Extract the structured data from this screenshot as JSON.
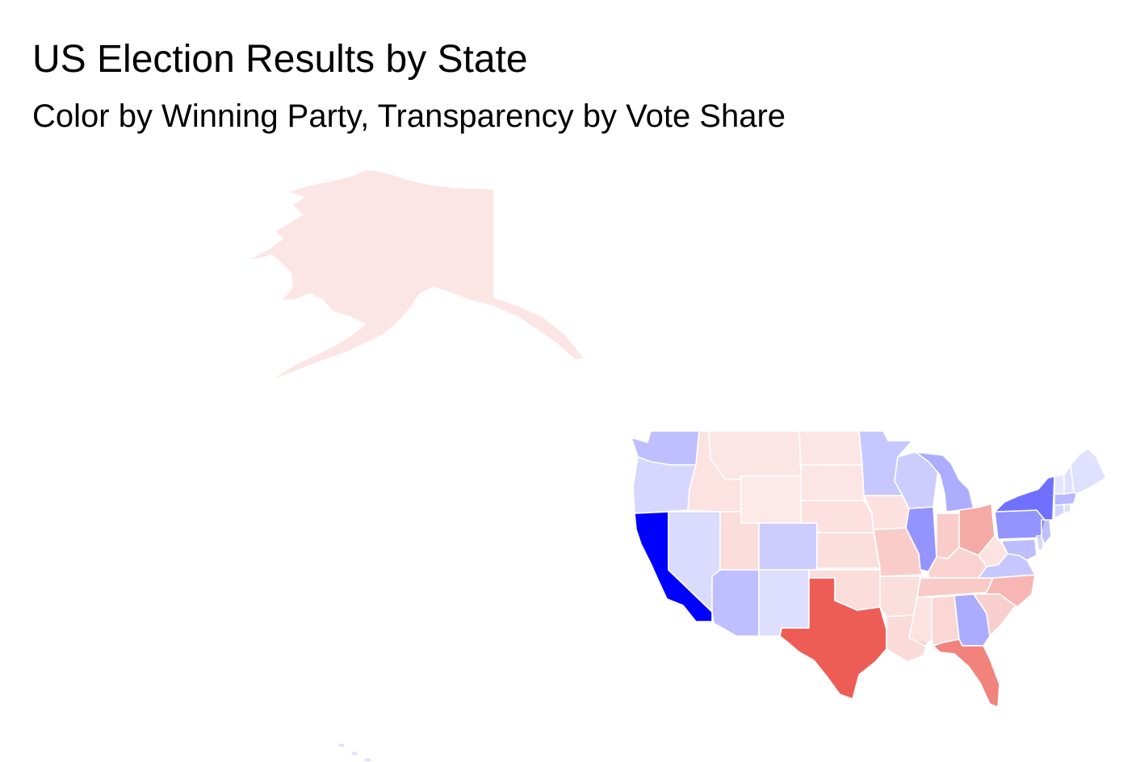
{
  "title": "US Election Results by State",
  "subtitle": "Color by Winning Party, Transparency by Vote Share",
  "party_colors": {
    "D": "#0000ff",
    "R": "#e8352c"
  },
  "states": [
    {
      "id": "AK",
      "party": "R",
      "share": 0.12
    },
    {
      "id": "WA",
      "party": "D",
      "share": 0.25
    },
    {
      "id": "OR",
      "party": "D",
      "share": 0.16
    },
    {
      "id": "CA",
      "party": "D",
      "share": 1.0
    },
    {
      "id": "ID",
      "party": "R",
      "share": 0.14
    },
    {
      "id": "NV",
      "party": "D",
      "share": 0.14
    },
    {
      "id": "MT",
      "party": "R",
      "share": 0.12
    },
    {
      "id": "WY",
      "party": "R",
      "share": 0.11
    },
    {
      "id": "UT",
      "party": "R",
      "share": 0.17
    },
    {
      "id": "AZ",
      "party": "D",
      "share": 0.25
    },
    {
      "id": "CO",
      "party": "D",
      "share": 0.2
    },
    {
      "id": "NM",
      "party": "D",
      "share": 0.13
    },
    {
      "id": "ND",
      "party": "R",
      "share": 0.12
    },
    {
      "id": "SD",
      "party": "R",
      "share": 0.12
    },
    {
      "id": "NE",
      "party": "R",
      "share": 0.15
    },
    {
      "id": "KS",
      "party": "R",
      "share": 0.16
    },
    {
      "id": "OK",
      "party": "R",
      "share": 0.17
    },
    {
      "id": "TX",
      "party": "R",
      "share": 0.8
    },
    {
      "id": "MN",
      "party": "D",
      "share": 0.22
    },
    {
      "id": "IA",
      "party": "R",
      "share": 0.15
    },
    {
      "id": "MO",
      "party": "R",
      "share": 0.25
    },
    {
      "id": "AR",
      "party": "R",
      "share": 0.16
    },
    {
      "id": "LA",
      "party": "R",
      "share": 0.18
    },
    {
      "id": "WI",
      "party": "D",
      "share": 0.2
    },
    {
      "id": "IL",
      "party": "D",
      "share": 0.42
    },
    {
      "id": "MI",
      "party": "D",
      "share": 0.32
    },
    {
      "id": "IN",
      "party": "R",
      "share": 0.25
    },
    {
      "id": "OH",
      "party": "R",
      "share": 0.42
    },
    {
      "id": "KY",
      "party": "R",
      "share": 0.22
    },
    {
      "id": "TN",
      "party": "R",
      "share": 0.26
    },
    {
      "id": "MS",
      "party": "R",
      "share": 0.14
    },
    {
      "id": "AL",
      "party": "R",
      "share": 0.2
    },
    {
      "id": "GA",
      "party": "D",
      "share": 0.33
    },
    {
      "id": "FL",
      "party": "R",
      "share": 0.62
    },
    {
      "id": "SC",
      "party": "R",
      "share": 0.24
    },
    {
      "id": "NC",
      "party": "R",
      "share": 0.36
    },
    {
      "id": "VA",
      "party": "D",
      "share": 0.22
    },
    {
      "id": "WV",
      "party": "R",
      "share": 0.14
    },
    {
      "id": "PA",
      "party": "D",
      "share": 0.42
    },
    {
      "id": "NY",
      "party": "D",
      "share": 0.56
    },
    {
      "id": "NJ",
      "party": "D",
      "share": 0.25
    },
    {
      "id": "MD",
      "party": "D",
      "share": 0.26
    },
    {
      "id": "DE",
      "party": "D",
      "share": 0.16
    },
    {
      "id": "CT",
      "party": "D",
      "share": 0.17
    },
    {
      "id": "MA",
      "party": "D",
      "share": 0.28
    },
    {
      "id": "RI",
      "party": "D",
      "share": 0.12
    },
    {
      "id": "VT",
      "party": "D",
      "share": 0.1
    },
    {
      "id": "NH",
      "party": "D",
      "share": 0.12
    },
    {
      "id": "ME",
      "party": "D",
      "share": 0.12
    },
    {
      "id": "HI",
      "party": "D",
      "share": 0.12
    }
  ]
}
